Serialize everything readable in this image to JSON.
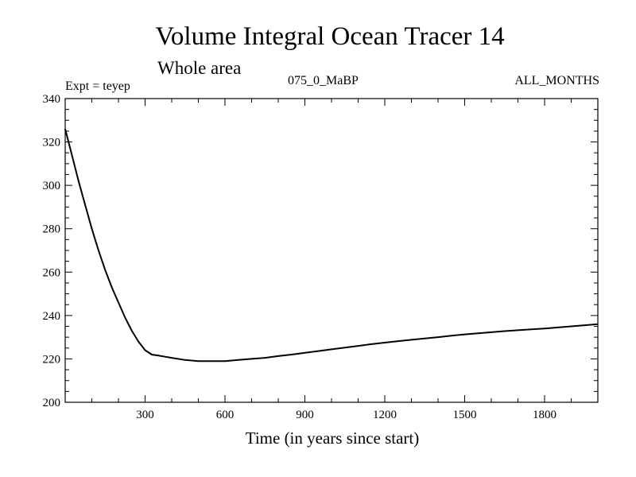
{
  "chart_data": {
    "type": "line",
    "title": "Volume Integral Ocean Tracer 14",
    "subtitle": "Whole area",
    "annotations": {
      "experiment": "Expt = teyep",
      "period": "075_0_MaBP",
      "months": "ALL_MONTHS"
    },
    "xlabel": "Time (in years since start)",
    "ylabel": "",
    "xlim": [
      0,
      2000
    ],
    "ylim": [
      200,
      340
    ],
    "x_ticks": [
      300,
      600,
      900,
      1200,
      1500,
      1800
    ],
    "y_ticks": [
      200,
      220,
      240,
      260,
      280,
      300,
      320,
      340
    ],
    "grid": false,
    "series": [
      {
        "name": "Tracer 14",
        "color": "#000000",
        "x": [
          0,
          25,
          50,
          75,
          100,
          125,
          150,
          175,
          200,
          225,
          250,
          275,
          300,
          325,
          350,
          375,
          400,
          450,
          500,
          550,
          600,
          650,
          700,
          750,
          800,
          850,
          900,
          950,
          1000,
          1050,
          1100,
          1150,
          1200,
          1250,
          1300,
          1350,
          1400,
          1450,
          1500,
          1550,
          1600,
          1650,
          1700,
          1750,
          1800,
          1850,
          1900,
          1950,
          2000
        ],
        "y": [
          326,
          314,
          302,
          291,
          280,
          270,
          261,
          253,
          246,
          239,
          233,
          228,
          224,
          222,
          221.5,
          221,
          220.5,
          219.5,
          219,
          219,
          219,
          219.5,
          220,
          220.5,
          221.3,
          222,
          222.8,
          223.6,
          224.4,
          225.2,
          226,
          226.8,
          227.5,
          228.2,
          228.8,
          229.4,
          230,
          230.7,
          231.3,
          231.8,
          232.3,
          232.8,
          233.2,
          233.6,
          234,
          234.5,
          235,
          235.5,
          236
        ]
      }
    ]
  }
}
